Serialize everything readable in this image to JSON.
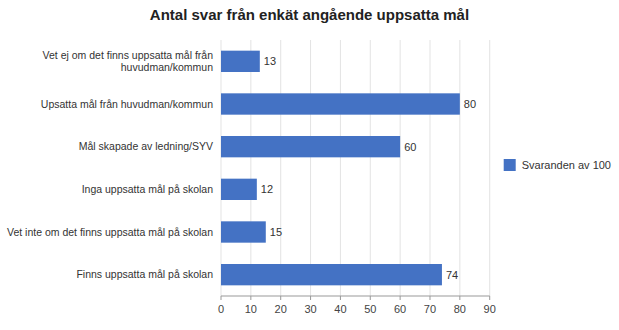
{
  "chart_data": {
    "type": "bar",
    "orientation": "horizontal",
    "title": "Antal svar från enkät angående uppsatta mål",
    "categories": [
      "Finns uppsatta mål på skolan",
      "Vet inte om det finns uppsatta mål på skolan",
      "Inga uppsatta mål på skolan",
      "Mål skapade av ledning/SYV",
      "Upsatta mål från huvudman/kommun",
      "Vet ej om det finns uppsatta mål från\nhuvudman/kommun"
    ],
    "series": [
      {
        "name": "Svaranden av 100",
        "color": "#4472C4",
        "values": [
          74,
          15,
          12,
          60,
          80,
          13
        ]
      }
    ],
    "xlim": [
      0,
      90
    ],
    "xticks": [
      0,
      10,
      20,
      30,
      40,
      50,
      60,
      70,
      80,
      90
    ],
    "grid": true,
    "legend": "right",
    "data_labels": true
  }
}
